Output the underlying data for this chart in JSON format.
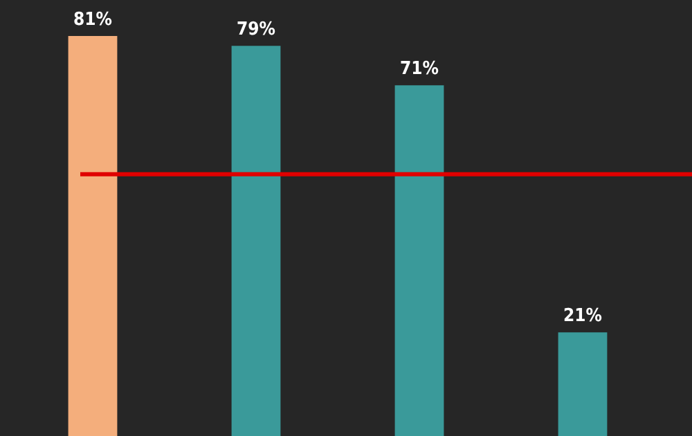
{
  "chart_data": {
    "type": "bar",
    "relative": false,
    "categories": [
      null,
      null,
      null,
      null
    ],
    "values": [
      81,
      79,
      71,
      21
    ],
    "colors": [
      "#f4ae7c",
      "#3a9a9a",
      "#3a9a9a",
      "#3a9a9a"
    ],
    "value_labels": [
      "81%",
      "79%",
      "71%",
      "21%"
    ],
    "ref_lines": [
      {
        "axis": "y",
        "value": 53,
        "color": "#e00000"
      }
    ],
    "grid": false,
    "legend": false,
    "tick_labels": false
  }
}
